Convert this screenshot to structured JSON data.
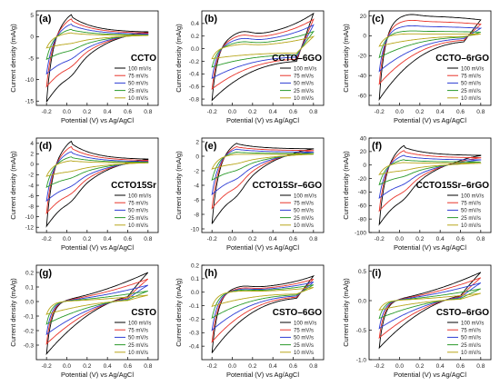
{
  "figure": {
    "series_names": [
      "100 mV/s",
      "75 mV/s",
      "50 mV/s",
      "25 mV/s",
      "10 mV/s"
    ],
    "series_colors": [
      "#000000",
      "#e8342a",
      "#2c3cd4",
      "#2a9a2a",
      "#b8a61a"
    ]
  },
  "chart_data": [
    {
      "type": "line",
      "panel": "(a)",
      "title": "CCTO",
      "xlabel": "Potential (V) vs Ag/AgCl",
      "ylabel": "Current density (mA/g)",
      "xlim": [
        -0.3,
        0.9
      ],
      "ylim": [
        -16,
        6
      ],
      "xticks": [
        -0.2,
        0.0,
        0.2,
        0.4,
        0.6,
        0.8
      ],
      "xtick_labels": [
        "-0.2",
        "0.0",
        "0.2",
        "0.4",
        "0.6",
        "0.8"
      ],
      "yticks": [
        -15,
        -10,
        -5,
        0,
        5
      ],
      "ytick_labels": [
        "-15",
        "-10",
        "-5",
        "0",
        "5"
      ],
      "legend": "bottom-right",
      "grid": false,
      "series": [
        {
          "name": "100 mV/s",
          "peak_current": 4.6,
          "min_current": -15.2,
          "end_current": 1.0
        },
        {
          "name": "75 mV/s",
          "peak_current": 3.8,
          "min_current": -12.0,
          "end_current": 0.8
        },
        {
          "name": "50 mV/s",
          "peak_current": 2.8,
          "min_current": -9.2,
          "end_current": 0.6
        },
        {
          "name": "25 mV/s",
          "peak_current": 1.7,
          "min_current": -5.8,
          "end_current": 0.4
        },
        {
          "name": "10 mV/s",
          "peak_current": 0.9,
          "min_current": -3.0,
          "end_current": 0.3
        }
      ]
    },
    {
      "type": "line",
      "panel": "(b)",
      "title": "CCTO–6GO",
      "xlabel": "Potential (V) vs Ag/AgCl",
      "ylabel": "Current density (mA/g)",
      "xlim": [
        -0.3,
        0.9
      ],
      "ylim": [
        -0.9,
        0.6
      ],
      "xticks": [
        -0.2,
        0.0,
        0.2,
        0.4,
        0.6,
        0.8
      ],
      "xtick_labels": [
        "-0.2",
        "0.0",
        "0.2",
        "0.4",
        "0.6",
        "0.8"
      ],
      "yticks": [
        -0.8,
        -0.6,
        -0.4,
        -0.2,
        0.0,
        0.2,
        0.4
      ],
      "ytick_labels": [
        "-0.8",
        "-0.6",
        "-0.4",
        "-0.2",
        "0.0",
        "0.2",
        "0.4"
      ],
      "legend": "bottom-right",
      "grid": false,
      "series": [
        {
          "name": "100 mV/s",
          "peak_current": 0.2,
          "min_current": -0.82,
          "end_current": 0.56
        },
        {
          "name": "75 mV/s",
          "peak_current": 0.16,
          "min_current": -0.66,
          "end_current": 0.48
        },
        {
          "name": "50 mV/s",
          "peak_current": 0.12,
          "min_current": -0.5,
          "end_current": 0.4
        },
        {
          "name": "25 mV/s",
          "peak_current": 0.08,
          "min_current": -0.32,
          "end_current": 0.3
        },
        {
          "name": "10 mV/s",
          "peak_current": 0.05,
          "min_current": -0.18,
          "end_current": 0.22
        }
      ]
    },
    {
      "type": "line",
      "panel": "(c)",
      "title": "CCTO–6rGO",
      "xlabel": "Potential (V) vs Ag/AgCl",
      "ylabel": "Current density (mA/g)",
      "xlim": [
        -0.3,
        0.9
      ],
      "ylim": [
        -70,
        25
      ],
      "xticks": [
        -0.2,
        0.0,
        0.2,
        0.4,
        0.6,
        0.8
      ],
      "xtick_labels": [
        "-0.2",
        "0.0",
        "0.2",
        "0.4",
        "0.6",
        "0.8"
      ],
      "yticks": [
        -60,
        -40,
        -20,
        0,
        20
      ],
      "ytick_labels": [
        "-60",
        "-40",
        "-20",
        "0",
        "20"
      ],
      "legend": "bottom-right",
      "grid": false,
      "series": [
        {
          "name": "100 mV/s",
          "peak_current": 20,
          "min_current": -64,
          "end_current": 16
        },
        {
          "name": "75 mV/s",
          "peak_current": 15,
          "min_current": -50,
          "end_current": 12
        },
        {
          "name": "50 mV/s",
          "peak_current": 10,
          "min_current": -38,
          "end_current": 8
        },
        {
          "name": "25 mV/s",
          "peak_current": 5,
          "min_current": -24,
          "end_current": 4
        },
        {
          "name": "10 mV/s",
          "peak_current": 2,
          "min_current": -12,
          "end_current": 2
        }
      ]
    },
    {
      "type": "line",
      "panel": "(d)",
      "title": "CCTO15Sr",
      "xlabel": "Potential (V) vs Ag/AgCl",
      "ylabel": "Current density (mA/g)",
      "xlim": [
        -0.3,
        0.9
      ],
      "ylim": [
        -13,
        5
      ],
      "xticks": [
        -0.2,
        0.0,
        0.2,
        0.4,
        0.6,
        0.8
      ],
      "xtick_labels": [
        "-0.2",
        "0.0",
        "0.2",
        "0.4",
        "0.6",
        "0.8"
      ],
      "yticks": [
        -12,
        -10,
        -8,
        -6,
        -4,
        -2,
        0,
        2,
        4
      ],
      "ytick_labels": [
        "-12",
        "-10",
        "-8",
        "-6",
        "-4",
        "-2",
        "0",
        "2",
        "4"
      ],
      "legend": "bottom-right",
      "grid": false,
      "series": [
        {
          "name": "100 mV/s",
          "peak_current": 3.9,
          "min_current": -11.8,
          "end_current": 0.9
        },
        {
          "name": "75 mV/s",
          "peak_current": 3.1,
          "min_current": -9.6,
          "end_current": 0.7
        },
        {
          "name": "50 mV/s",
          "peak_current": 2.3,
          "min_current": -7.4,
          "end_current": 0.5
        },
        {
          "name": "25 mV/s",
          "peak_current": 1.4,
          "min_current": -4.8,
          "end_current": 0.4
        },
        {
          "name": "10 mV/s",
          "peak_current": 0.7,
          "min_current": -2.6,
          "end_current": 0.3
        }
      ]
    },
    {
      "type": "line",
      "panel": "(e)",
      "title": "CCTO15Sr–6GO",
      "xlabel": "Potential (V) vs Ag/AgCl",
      "ylabel": "Current density (mA/g)",
      "xlim": [
        -0.3,
        0.9
      ],
      "ylim": [
        -10.5,
        2.5
      ],
      "xticks": [
        -0.2,
        0.0,
        0.2,
        0.4,
        0.6,
        0.8
      ],
      "xtick_labels": [
        "-0.2",
        "0.0",
        "0.2",
        "0.4",
        "0.6",
        "0.8"
      ],
      "yticks": [
        -10,
        -8,
        -6,
        -4,
        -2,
        0,
        2
      ],
      "ytick_labels": [
        "-10",
        "-8",
        "-6",
        "-4",
        "-2",
        "0",
        "2"
      ],
      "legend": "bottom-right",
      "grid": false,
      "series": [
        {
          "name": "100 mV/s",
          "peak_current": 1.7,
          "min_current": -9.3,
          "end_current": 1.0
        },
        {
          "name": "75 mV/s",
          "peak_current": 1.3,
          "min_current": -7.4,
          "end_current": 0.8
        },
        {
          "name": "50 mV/s",
          "peak_current": 1.0,
          "min_current": -5.6,
          "end_current": 0.6
        },
        {
          "name": "25 mV/s",
          "peak_current": 0.6,
          "min_current": -3.6,
          "end_current": 0.4
        },
        {
          "name": "10 mV/s",
          "peak_current": 0.3,
          "min_current": -2.0,
          "end_current": 0.3
        }
      ]
    },
    {
      "type": "line",
      "panel": "(f)",
      "title": "CCTO15Sr–6rGO",
      "xlabel": "Potential (V) vs Ag/AgCl",
      "ylabel": "Current density (mA/g)",
      "xlim": [
        -0.3,
        0.9
      ],
      "ylim": [
        -100,
        40
      ],
      "xticks": [
        -0.2,
        0.0,
        0.2,
        0.4,
        0.6,
        0.8
      ],
      "xtick_labels": [
        "-0.2",
        "0.0",
        "0.2",
        "0.4",
        "0.6",
        "0.8"
      ],
      "yticks": [
        -100,
        -80,
        -60,
        -40,
        -20,
        0,
        20,
        40
      ],
      "ytick_labels": [
        "-100",
        "-80",
        "-60",
        "-40",
        "-20",
        "0",
        "20",
        "40"
      ],
      "legend": "bottom-right",
      "grid": false,
      "series": [
        {
          "name": "100 mV/s",
          "peak_current": 26,
          "min_current": -88,
          "end_current": 14
        },
        {
          "name": "75 mV/s",
          "peak_current": 20,
          "min_current": -70,
          "end_current": 11
        },
        {
          "name": "50 mV/s",
          "peak_current": 14,
          "min_current": -52,
          "end_current": 8
        },
        {
          "name": "25 mV/s",
          "peak_current": 8,
          "min_current": -32,
          "end_current": 5
        },
        {
          "name": "10 mV/s",
          "peak_current": 4,
          "min_current": -16,
          "end_current": 3
        }
      ]
    },
    {
      "type": "line",
      "panel": "(g)",
      "title": "CSTO",
      "xlabel": "Potential (V) vs Ag/AgCl",
      "ylabel": "Current density (mA/g)",
      "xlim": [
        -0.3,
        0.9
      ],
      "ylim": [
        -0.4,
        0.25
      ],
      "xticks": [
        -0.2,
        0.0,
        0.2,
        0.4,
        0.6,
        0.8
      ],
      "xtick_labels": [
        "-0.2",
        "0.0",
        "0.2",
        "0.4",
        "0.6",
        "0.8"
      ],
      "yticks": [
        -0.3,
        -0.2,
        -0.1,
        0.0,
        0.1,
        0.2
      ],
      "ytick_labels": [
        "-0.3",
        "-0.2",
        "-0.1",
        "0.0",
        "0.1",
        "0.2"
      ],
      "legend": "bottom-right",
      "grid": false,
      "series": [
        {
          "name": "100 mV/s",
          "peak_current": 0.0,
          "min_current": -0.36,
          "end_current": 0.2
        },
        {
          "name": "75 mV/s",
          "peak_current": 0.0,
          "min_current": -0.3,
          "end_current": 0.16
        },
        {
          "name": "50 mV/s",
          "peak_current": 0.0,
          "min_current": -0.24,
          "end_current": 0.12
        },
        {
          "name": "25 mV/s",
          "peak_current": 0.0,
          "min_current": -0.17,
          "end_current": 0.08
        },
        {
          "name": "10 mV/s",
          "peak_current": 0.0,
          "min_current": -0.1,
          "end_current": 0.05
        }
      ]
    },
    {
      "type": "line",
      "panel": "(h)",
      "title": "CSTO–6GO",
      "xlabel": "Potential (V) vs Ag/AgCl",
      "ylabel": "Current density (mA/g)",
      "xlim": [
        -0.3,
        0.9
      ],
      "ylim": [
        -0.5,
        0.2
      ],
      "xticks": [
        -0.2,
        0.0,
        0.2,
        0.4,
        0.6,
        0.8
      ],
      "xtick_labels": [
        "-0.2",
        "0.0",
        "0.2",
        "0.4",
        "0.6",
        "0.8"
      ],
      "yticks": [
        -0.4,
        -0.3,
        -0.2,
        -0.1,
        0.0,
        0.1,
        0.2
      ],
      "ytick_labels": [
        "-0.4",
        "-0.3",
        "-0.2",
        "-0.1",
        "0.0",
        "0.1",
        "0.2"
      ],
      "legend": "bottom-right",
      "grid": false,
      "series": [
        {
          "name": "100 mV/s",
          "peak_current": 0.03,
          "min_current": -0.45,
          "end_current": 0.12
        },
        {
          "name": "75 mV/s",
          "peak_current": 0.02,
          "min_current": -0.38,
          "end_current": 0.1
        },
        {
          "name": "50 mV/s",
          "peak_current": 0.015,
          "min_current": -0.3,
          "end_current": 0.08
        },
        {
          "name": "25 mV/s",
          "peak_current": 0.01,
          "min_current": -0.21,
          "end_current": 0.06
        },
        {
          "name": "10 mV/s",
          "peak_current": 0.005,
          "min_current": -0.12,
          "end_current": 0.04
        }
      ]
    },
    {
      "type": "line",
      "panel": "(i)",
      "title": "CSTO–6rGO",
      "xlabel": "Potential (V) vs Ag/AgCl",
      "ylabel": "Current density (mA/g)",
      "xlim": [
        -0.3,
        0.9
      ],
      "ylim": [
        -1.0,
        0.6
      ],
      "xticks": [
        -0.2,
        0.0,
        0.2,
        0.4,
        0.6,
        0.8
      ],
      "xtick_labels": [
        "-0.2",
        "0.0",
        "0.2",
        "0.4",
        "0.6",
        "0.8"
      ],
      "yticks": [
        -1.0,
        -0.5,
        0.0,
        0.5
      ],
      "ytick_labels": [
        "-1.0",
        "-0.5",
        "0.0",
        "0.5"
      ],
      "legend": "bottom-right",
      "grid": false,
      "series": [
        {
          "name": "100 mV/s",
          "peak_current": 0.0,
          "min_current": -0.8,
          "end_current": 0.48
        },
        {
          "name": "75 mV/s",
          "peak_current": 0.0,
          "min_current": -0.65,
          "end_current": 0.4
        },
        {
          "name": "50 mV/s",
          "peak_current": 0.0,
          "min_current": -0.5,
          "end_current": 0.32
        },
        {
          "name": "25 mV/s",
          "peak_current": 0.0,
          "min_current": -0.33,
          "end_current": 0.22
        },
        {
          "name": "10 mV/s",
          "peak_current": 0.0,
          "min_current": -0.18,
          "end_current": 0.14
        }
      ]
    }
  ]
}
